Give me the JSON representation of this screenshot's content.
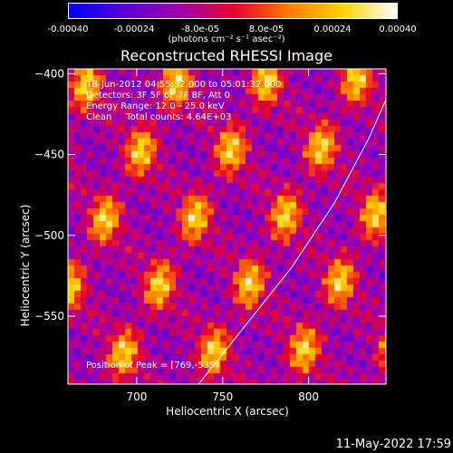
{
  "colorbar": {
    "ticks": [
      "-0.00040",
      "-0.00024",
      "-8.0e-05",
      "8.0e-05",
      "0.00024",
      "0.00040"
    ],
    "units": "(photons cm⁻² s⁻¹ asec⁻²)",
    "colors": [
      "#0000ff",
      "#5a00d8",
      "#a000b0",
      "#e60030",
      "#ff7a00",
      "#ffd200",
      "#ffffff"
    ]
  },
  "chart_data": {
    "type": "heatmap",
    "title": "Reconstructed RHESSI Image",
    "xlabel": "Heliocentric X (arcsec)",
    "ylabel": "Heliocentric Y (arcsec)",
    "xlim": [
      660,
      845
    ],
    "ylim": [
      -592,
      -397
    ],
    "xticks": [
      700,
      750,
      800
    ],
    "yticks": [
      -400,
      -450,
      -500,
      -550
    ],
    "limb_curve": [
      [
        736,
        -592
      ],
      [
        760,
        -560
      ],
      [
        790,
        -520
      ],
      [
        815,
        -480
      ],
      [
        835,
        -440
      ],
      [
        845,
        -416
      ]
    ],
    "annotations": {
      "time_range": "18-Jun-2012 04:55:32.000 to 05:01:32.000",
      "detectors": "Detectors: 3F 5F 6F 7F 8F, Att 0",
      "energy": "Energy Range: 12.0 - 25.0 keV",
      "method": "Clean     Total counts: 4.64E+03",
      "peak": "Position of Peak = [769,-535]"
    }
  },
  "footer": {
    "timestamp": "11-May-2022 17:59"
  }
}
